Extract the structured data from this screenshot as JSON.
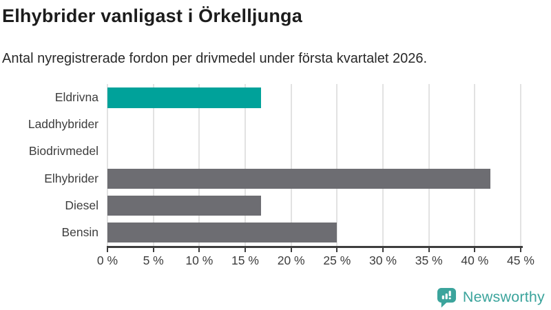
{
  "title": "Elhybrider vanligast i Örkelljunga",
  "subtitle": "Antal nyregistrerade fordon per drivmedel under första kvartalet 2026.",
  "chart_data": {
    "type": "bar",
    "orientation": "horizontal",
    "title": "Elhybrider vanligast i Örkelljunga",
    "subtitle": "Antal nyregistrerade fordon per drivmedel under första kvartalet 2026.",
    "categories": [
      "Eldrivna",
      "Laddhybrider",
      "Biodrivmedel",
      "Elhybrider",
      "Diesel",
      "Bensin"
    ],
    "values": [
      16.7,
      0,
      0,
      41.7,
      16.7,
      25
    ],
    "unit": "%",
    "xlim": [
      0,
      45
    ],
    "x_ticks": [
      0,
      5,
      10,
      15,
      20,
      25,
      30,
      35,
      40,
      45
    ],
    "x_tick_labels": [
      "0 %",
      "5 %",
      "10 %",
      "15 %",
      "20 %",
      "25 %",
      "30 %",
      "35 %",
      "40 %",
      "45 %"
    ],
    "grid": "vertical-on",
    "legend": "off",
    "highlight_index": 0,
    "colors": {
      "highlight": "#00a29a",
      "default": "#6d6d72",
      "gridline": "#e2e2e2",
      "axis": "#3d3d3d"
    }
  },
  "logo": {
    "text": "Newsworthy",
    "color": "#3ba49c",
    "icon": "newsworthy-chart-bubble-icon"
  }
}
